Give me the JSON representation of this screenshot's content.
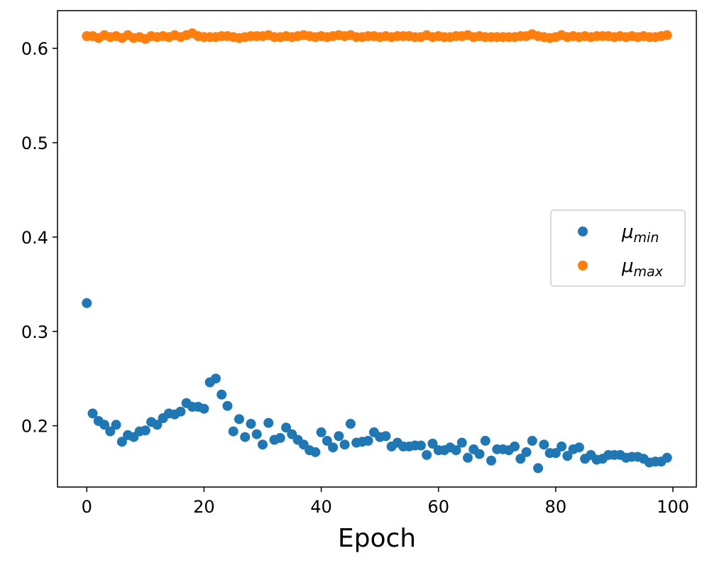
{
  "chart_data": {
    "type": "scatter",
    "title": "",
    "xlabel": "Epoch",
    "ylabel": "",
    "xlim": [
      -5,
      104
    ],
    "ylim": [
      0.135,
      0.64
    ],
    "xticks": [
      0,
      20,
      40,
      60,
      80,
      100
    ],
    "yticks": [
      0.2,
      0.3,
      0.4,
      0.5,
      0.6
    ],
    "grid": false,
    "legend_position": "center-right",
    "x": [
      0,
      1,
      2,
      3,
      4,
      5,
      6,
      7,
      8,
      9,
      10,
      11,
      12,
      13,
      14,
      15,
      16,
      17,
      18,
      19,
      20,
      21,
      22,
      23,
      24,
      25,
      26,
      27,
      28,
      29,
      30,
      31,
      32,
      33,
      34,
      35,
      36,
      37,
      38,
      39,
      40,
      41,
      42,
      43,
      44,
      45,
      46,
      47,
      48,
      49,
      50,
      51,
      52,
      53,
      54,
      55,
      56,
      57,
      58,
      59,
      60,
      61,
      62,
      63,
      64,
      65,
      66,
      67,
      68,
      69,
      70,
      71,
      72,
      73,
      74,
      75,
      76,
      77,
      78,
      79,
      80,
      81,
      82,
      83,
      84,
      85,
      86,
      87,
      88,
      89,
      90,
      91,
      92,
      93,
      94,
      95,
      96,
      97,
      98,
      99
    ],
    "series": [
      {
        "name_main": "μ",
        "name_sub": "min",
        "color": "#1f77b4",
        "values": [
          0.33,
          0.213,
          0.205,
          0.201,
          0.194,
          0.201,
          0.183,
          0.19,
          0.188,
          0.194,
          0.195,
          0.204,
          0.201,
          0.208,
          0.213,
          0.212,
          0.215,
          0.224,
          0.22,
          0.22,
          0.218,
          0.246,
          0.25,
          0.233,
          0.221,
          0.194,
          0.207,
          0.188,
          0.202,
          0.191,
          0.18,
          0.203,
          0.185,
          0.187,
          0.198,
          0.191,
          0.185,
          0.18,
          0.174,
          0.172,
          0.193,
          0.184,
          0.177,
          0.189,
          0.18,
          0.202,
          0.182,
          0.183,
          0.184,
          0.193,
          0.188,
          0.189,
          0.178,
          0.182,
          0.178,
          0.178,
          0.179,
          0.179,
          0.169,
          0.181,
          0.174,
          0.174,
          0.177,
          0.174,
          0.182,
          0.166,
          0.175,
          0.17,
          0.184,
          0.163,
          0.175,
          0.175,
          0.174,
          0.178,
          0.165,
          0.172,
          0.184,
          0.155,
          0.18,
          0.171,
          0.171,
          0.178,
          0.168,
          0.175,
          0.177,
          0.165,
          0.169,
          0.164,
          0.165,
          0.169,
          0.169,
          0.169,
          0.166,
          0.167,
          0.167,
          0.165,
          0.161,
          0.162,
          0.162,
          0.166
        ]
      },
      {
        "name_main": "μ",
        "name_sub": "max",
        "color": "#ff7f0e",
        "values": [
          0.613,
          0.613,
          0.611,
          0.614,
          0.612,
          0.613,
          0.611,
          0.614,
          0.611,
          0.612,
          0.61,
          0.613,
          0.612,
          0.613,
          0.612,
          0.614,
          0.612,
          0.614,
          0.616,
          0.613,
          0.612,
          0.612,
          0.612,
          0.613,
          0.613,
          0.612,
          0.611,
          0.612,
          0.613,
          0.613,
          0.613,
          0.614,
          0.612,
          0.612,
          0.613,
          0.612,
          0.613,
          0.614,
          0.613,
          0.612,
          0.613,
          0.612,
          0.613,
          0.614,
          0.613,
          0.614,
          0.612,
          0.612,
          0.613,
          0.613,
          0.612,
          0.613,
          0.612,
          0.613,
          0.613,
          0.613,
          0.612,
          0.612,
          0.614,
          0.612,
          0.613,
          0.612,
          0.612,
          0.613,
          0.613,
          0.614,
          0.612,
          0.613,
          0.612,
          0.612,
          0.612,
          0.612,
          0.612,
          0.612,
          0.613,
          0.613,
          0.615,
          0.613,
          0.612,
          0.611,
          0.612,
          0.614,
          0.612,
          0.613,
          0.612,
          0.613,
          0.612,
          0.613,
          0.613,
          0.613,
          0.612,
          0.613,
          0.612,
          0.613,
          0.612,
          0.613,
          0.612,
          0.612,
          0.613,
          0.614
        ]
      }
    ]
  }
}
